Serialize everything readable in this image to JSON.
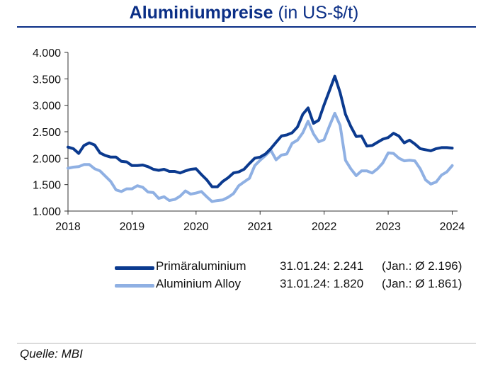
{
  "header": {
    "title_main": "Aluminiumpreise",
    "title_unit": "(in US-$/t)"
  },
  "source": "Quelle: MBI",
  "colors": {
    "primary": "#0b3a8f",
    "alloy": "#8fb0e3",
    "title": "#0b2f86",
    "axis": "#333333"
  },
  "chart_data": {
    "type": "line",
    "title": "Aluminiumpreise (in US-$/t)",
    "xlabel": "",
    "ylabel": "",
    "x_ticks": [
      "2018",
      "2019",
      "2020",
      "2021",
      "2022",
      "2023",
      "2024"
    ],
    "y_ticks": [
      "1.000",
      "1.500",
      "2.000",
      "2.500",
      "3.000",
      "3.500",
      "4.000"
    ],
    "ylim": [
      1000,
      4000
    ],
    "xlim": [
      2018,
      2024.0833
    ],
    "grid": false,
    "legend_position": "bottom",
    "series": [
      {
        "name": "Primäraluminium",
        "last_label": "31.01.24: 2.241",
        "avg_label": "(Jan.: Ø 2.196)",
        "x": [
          2018.0,
          2018.0833,
          2018.1667,
          2018.25,
          2018.3333,
          2018.4167,
          2018.5,
          2018.5833,
          2018.6667,
          2018.75,
          2018.8333,
          2018.9167,
          2019.0,
          2019.0833,
          2019.1667,
          2019.25,
          2019.3333,
          2019.4167,
          2019.5,
          2019.5833,
          2019.6667,
          2019.75,
          2019.8333,
          2019.9167,
          2020.0,
          2020.0833,
          2020.1667,
          2020.25,
          2020.3333,
          2020.4167,
          2020.5,
          2020.5833,
          2020.6667,
          2020.75,
          2020.8333,
          2020.9167,
          2021.0,
          2021.0833,
          2021.1667,
          2021.25,
          2021.3333,
          2021.4167,
          2021.5,
          2021.5833,
          2021.6667,
          2021.75,
          2021.8333,
          2021.9167,
          2022.0,
          2022.0833,
          2022.1667,
          2022.25,
          2022.3333,
          2022.4167,
          2022.5,
          2022.5833,
          2022.6667,
          2022.75,
          2022.8333,
          2022.9167,
          2023.0,
          2023.0833,
          2023.1667,
          2023.25,
          2023.3333,
          2023.4167,
          2023.5,
          2023.5833,
          2023.6667,
          2023.75,
          2023.8333,
          2023.9167,
          2024.0
        ],
        "y": [
          2210,
          2180,
          2090,
          2240,
          2290,
          2250,
          2100,
          2050,
          2020,
          2020,
          1940,
          1930,
          1860,
          1860,
          1870,
          1840,
          1790,
          1770,
          1790,
          1750,
          1750,
          1720,
          1760,
          1790,
          1800,
          1690,
          1590,
          1460,
          1460,
          1560,
          1630,
          1720,
          1740,
          1790,
          1900,
          2000,
          2020,
          2080,
          2180,
          2300,
          2420,
          2440,
          2480,
          2590,
          2830,
          2950,
          2660,
          2720,
          3010,
          3280,
          3550,
          3240,
          2830,
          2600,
          2410,
          2420,
          2230,
          2240,
          2300,
          2360,
          2390,
          2470,
          2420,
          2290,
          2340,
          2270,
          2180,
          2160,
          2140,
          2180,
          2200,
          2200,
          2190
        ]
      },
      {
        "name": "Aluminium Alloy",
        "last_label": "31.01.24: 1.820",
        "avg_label": "(Jan.: Ø 1.861)",
        "x": [
          2018.0,
          2018.0833,
          2018.1667,
          2018.25,
          2018.3333,
          2018.4167,
          2018.5,
          2018.5833,
          2018.6667,
          2018.75,
          2018.8333,
          2018.9167,
          2019.0,
          2019.0833,
          2019.1667,
          2019.25,
          2019.3333,
          2019.4167,
          2019.5,
          2019.5833,
          2019.6667,
          2019.75,
          2019.8333,
          2019.9167,
          2020.0,
          2020.0833,
          2020.1667,
          2020.25,
          2020.3333,
          2020.4167,
          2020.5,
          2020.5833,
          2020.6667,
          2020.75,
          2020.8333,
          2020.9167,
          2021.0,
          2021.0833,
          2021.1667,
          2021.25,
          2021.3333,
          2021.4167,
          2021.5,
          2021.5833,
          2021.6667,
          2021.75,
          2021.8333,
          2021.9167,
          2022.0,
          2022.0833,
          2022.1667,
          2022.25,
          2022.3333,
          2022.4167,
          2022.5,
          2022.5833,
          2022.6667,
          2022.75,
          2022.8333,
          2022.9167,
          2023.0,
          2023.0833,
          2023.1667,
          2023.25,
          2023.3333,
          2023.4167,
          2023.5,
          2023.5833,
          2023.6667,
          2023.75,
          2023.8333,
          2023.9167,
          2024.0
        ],
        "y": [
          1810,
          1830,
          1840,
          1880,
          1880,
          1800,
          1760,
          1660,
          1560,
          1400,
          1370,
          1420,
          1420,
          1480,
          1450,
          1360,
          1350,
          1240,
          1270,
          1200,
          1220,
          1280,
          1380,
          1320,
          1340,
          1370,
          1270,
          1180,
          1200,
          1210,
          1260,
          1330,
          1480,
          1550,
          1620,
          1860,
          1960,
          2050,
          2150,
          1970,
          2060,
          2080,
          2280,
          2340,
          2480,
          2700,
          2460,
          2310,
          2350,
          2610,
          2850,
          2620,
          1960,
          1800,
          1670,
          1760,
          1760,
          1720,
          1800,
          1910,
          2100,
          2090,
          2000,
          1950,
          1960,
          1950,
          1800,
          1590,
          1510,
          1550,
          1680,
          1740,
          1860
        ]
      }
    ]
  }
}
